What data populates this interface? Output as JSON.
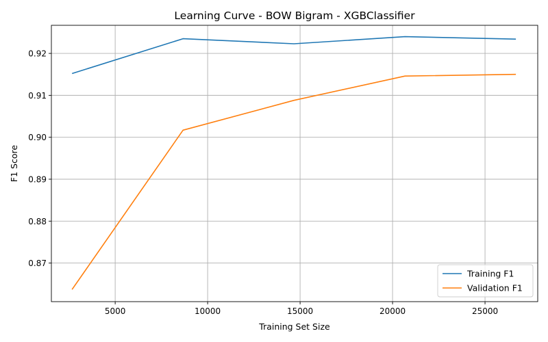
{
  "chart_data": {
    "type": "line",
    "title": "Learning Curve - BOW Bigram - XGBClassifier",
    "xlabel": "Training Set Size",
    "ylabel": "F1 Score",
    "xlim": [
      1550,
      27850
    ],
    "ylim": [
      0.8608,
      0.9267
    ],
    "xticks": [
      5000,
      10000,
      15000,
      20000,
      25000
    ],
    "xtick_labels": [
      "5000",
      "10000",
      "15000",
      "20000",
      "25000"
    ],
    "yticks": [
      0.87,
      0.88,
      0.89,
      0.9,
      0.91,
      0.92
    ],
    "ytick_labels": [
      "0.87",
      "0.88",
      "0.89",
      "0.90",
      "0.91",
      "0.92"
    ],
    "grid": true,
    "legend_position": "bottom-right",
    "x": [
      2670,
      8670,
      14670,
      20670,
      26670
    ],
    "series": [
      {
        "name": "Training F1",
        "color": "#1f77b4",
        "values": [
          0.9152,
          0.9235,
          0.9223,
          0.924,
          0.9234
        ]
      },
      {
        "name": "Validation F1",
        "color": "#ff7f0e",
        "values": [
          0.8637,
          0.9017,
          0.9088,
          0.9146,
          0.915
        ]
      }
    ]
  }
}
